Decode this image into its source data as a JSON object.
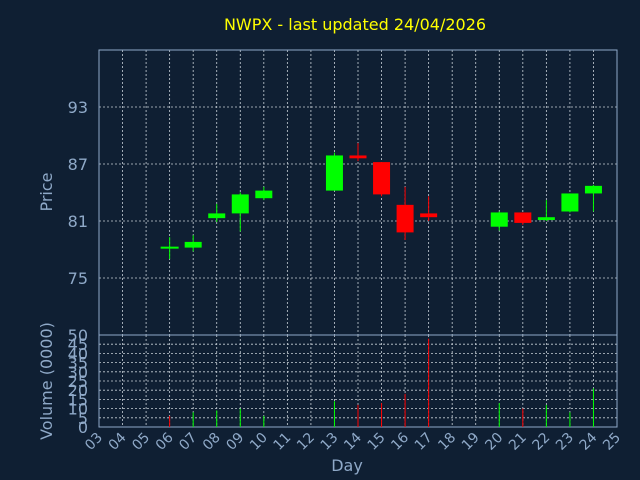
{
  "chart_data": {
    "type": "candlestick",
    "title": "NWPX - last updated 24/04/2026",
    "xlabel": "Day",
    "x_ticks": [
      "03",
      "04",
      "05",
      "06",
      "07",
      "08",
      "09",
      "10",
      "11",
      "12",
      "13",
      "14",
      "15",
      "16",
      "17",
      "18",
      "19",
      "20",
      "21",
      "22",
      "23",
      "24",
      "25"
    ],
    "price": {
      "ylabel": "Price",
      "ylim": [
        69,
        99
      ],
      "yticks": [
        75,
        81,
        87,
        93
      ],
      "candles": [
        {
          "day": "06",
          "open": 78.3,
          "high": 79.3,
          "low": 77.0,
          "close": 78.3
        },
        {
          "day": "07",
          "open": 78.2,
          "high": 79.5,
          "low": 77.8,
          "close": 78.8
        },
        {
          "day": "08",
          "open": 81.3,
          "high": 82.8,
          "low": 80.9,
          "close": 81.8
        },
        {
          "day": "09",
          "open": 81.8,
          "high": 84.0,
          "low": 79.9,
          "close": 83.8
        },
        {
          "day": "10",
          "open": 83.4,
          "high": 84.6,
          "low": 83.2,
          "close": 84.2
        },
        {
          "day": "13",
          "open": 84.2,
          "high": 88.2,
          "low": 84.2,
          "close": 87.9
        },
        {
          "day": "14",
          "open": 87.9,
          "high": 89.2,
          "low": 87.3,
          "close": 87.6
        },
        {
          "day": "15",
          "open": 87.2,
          "high": 87.2,
          "low": 83.6,
          "close": 83.8
        },
        {
          "day": "16",
          "open": 82.7,
          "high": 84.6,
          "low": 79.0,
          "close": 79.8
        },
        {
          "day": "17",
          "open": 81.8,
          "high": 83.6,
          "low": 81.0,
          "close": 81.4
        },
        {
          "day": "20",
          "open": 80.4,
          "high": 82.0,
          "low": 80.0,
          "close": 81.9
        },
        {
          "day": "21",
          "open": 81.9,
          "high": 81.9,
          "low": 80.6,
          "close": 80.8
        },
        {
          "day": "22",
          "open": 81.1,
          "high": 83.2,
          "low": 81.0,
          "close": 81.4
        },
        {
          "day": "23",
          "open": 82.0,
          "high": 83.9,
          "low": 81.9,
          "close": 83.9
        },
        {
          "day": "24",
          "open": 83.9,
          "high": 84.8,
          "low": 82.0,
          "close": 84.7
        }
      ]
    },
    "volume": {
      "ylabel": "Volume (0000)",
      "ylim": [
        0,
        50
      ],
      "yticks": [
        0,
        5,
        10,
        15,
        20,
        25,
        30,
        35,
        40,
        45,
        50
      ],
      "bars": [
        {
          "day": "06",
          "value": 6,
          "direction": "down"
        },
        {
          "day": "07",
          "value": 8,
          "direction": "up"
        },
        {
          "day": "08",
          "value": 9,
          "direction": "up"
        },
        {
          "day": "09",
          "value": 10,
          "direction": "up"
        },
        {
          "day": "10",
          "value": 6,
          "direction": "up"
        },
        {
          "day": "13",
          "value": 14,
          "direction": "up"
        },
        {
          "day": "14",
          "value": 12,
          "direction": "down"
        },
        {
          "day": "15",
          "value": 13,
          "direction": "down"
        },
        {
          "day": "16",
          "value": 18,
          "direction": "down"
        },
        {
          "day": "17",
          "value": 48,
          "direction": "down"
        },
        {
          "day": "20",
          "value": 13,
          "direction": "up"
        },
        {
          "day": "21",
          "value": 10,
          "direction": "down"
        },
        {
          "day": "22",
          "value": 12,
          "direction": "up"
        },
        {
          "day": "23",
          "value": 8,
          "direction": "up"
        },
        {
          "day": "24",
          "value": 21,
          "direction": "up"
        }
      ]
    },
    "grid": true,
    "colors": {
      "background": "#0f1f33",
      "up": "#00ff00",
      "down": "#ff0000",
      "grid": "#c8d0d8",
      "axis": "#8fa9c8",
      "title": "#ffff00"
    }
  }
}
